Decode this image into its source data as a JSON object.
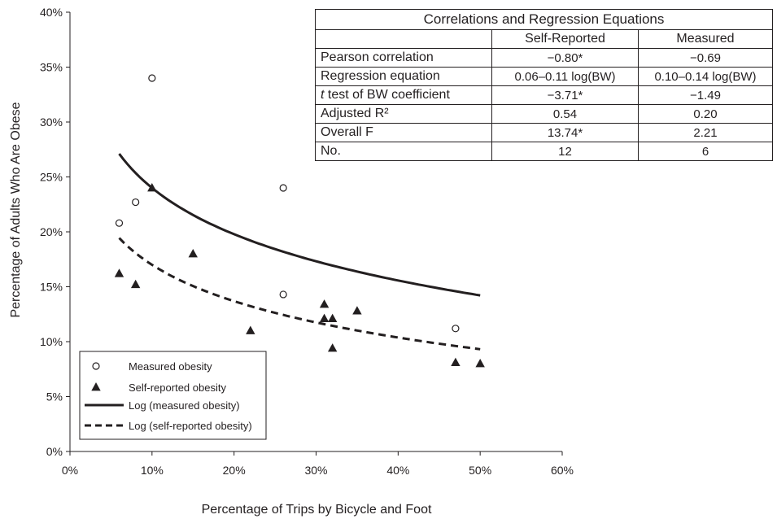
{
  "chart_data": {
    "type": "scatter",
    "xlabel": "Percentage of Trips by Bicycle and Foot",
    "ylabel": "Percentage of Adults Who Are Obese",
    "xlim": [
      0,
      60
    ],
    "ylim": [
      0,
      40
    ],
    "x_ticks": [
      "0%",
      "10%",
      "20%",
      "30%",
      "40%",
      "50%",
      "60%"
    ],
    "y_ticks": [
      "0%",
      "5%",
      "10%",
      "15%",
      "20%",
      "25%",
      "30%",
      "35%",
      "40%"
    ],
    "grid": false,
    "legend_position": "bottom-left",
    "series": [
      {
        "name": "Measured obesity",
        "marker": "open-circle",
        "points": [
          [
            6,
            20.8
          ],
          [
            8,
            22.7
          ],
          [
            10,
            34.0
          ],
          [
            26,
            24.0
          ],
          [
            26,
            14.3
          ],
          [
            47,
            11.2
          ]
        ]
      },
      {
        "name": "Self-reported obesity",
        "marker": "filled-triangle",
        "points": [
          [
            6,
            16.2
          ],
          [
            8,
            15.2
          ],
          [
            10,
            24.0
          ],
          [
            15,
            18.0
          ],
          [
            22,
            11.0
          ],
          [
            31,
            13.4
          ],
          [
            31,
            12.1
          ],
          [
            32,
            12.1
          ],
          [
            32,
            9.4
          ],
          [
            35,
            12.8
          ],
          [
            47,
            8.1
          ],
          [
            50,
            8.0
          ]
        ]
      },
      {
        "name": "Log (measured obesity)",
        "line_style": "solid",
        "fit": {
          "intercept": 0.1,
          "slope": -0.14,
          "unit": "fraction",
          "x_range": [
            6,
            50
          ]
        }
      },
      {
        "name": "Log (self-reported obesity)",
        "line_style": "dashed",
        "fit": {
          "intercept": 0.06,
          "slope": -0.11,
          "unit": "fraction",
          "x_range": [
            6,
            50
          ]
        }
      }
    ],
    "table": {
      "title": "Correlations and Regression Equations",
      "columns": [
        "",
        "Self-Reported",
        "Measured"
      ],
      "rows": [
        {
          "label": "Pearson correlation",
          "self": "−0.80*",
          "measured": "−0.69"
        },
        {
          "label_italic": "t",
          "label": " test of BW coefficient",
          "self": "−3.71*",
          "measured": "−1.49",
          "row_position": 3
        },
        {
          "label": "Regression equation",
          "self": "0.06–0.11 log(BW)",
          "measured": "0.10–0.14 log(BW)"
        },
        {
          "label": "Adjusted R²",
          "self": "0.54",
          "measured": "0.20"
        },
        {
          "label": "Overall F",
          "self": "13.74*",
          "measured": "2.21"
        },
        {
          "label": "No.",
          "self": "12",
          "measured": "6"
        }
      ]
    }
  },
  "table_rows": {
    "pearson": {
      "label": "Pearson correlation",
      "self": "−0.80*",
      "measured": "−0.69"
    },
    "regression": {
      "label": "Regression equation",
      "self": "0.06–0.11 log(BW)",
      "measured": "0.10–0.14 log(BW)"
    },
    "ttest": {
      "label_italic": "t",
      "label": " test of BW coefficient",
      "self": "−3.71*",
      "measured": "−1.49"
    },
    "r2": {
      "label": "Adjusted R²",
      "self": "0.54",
      "measured": "0.20"
    },
    "f": {
      "label": "Overall F",
      "self": "13.74*",
      "measured": "2.21"
    },
    "n": {
      "label": "No.",
      "self": "12",
      "measured": "6"
    }
  },
  "colors": {
    "ink": "#231f20",
    "background": "#ffffff"
  }
}
